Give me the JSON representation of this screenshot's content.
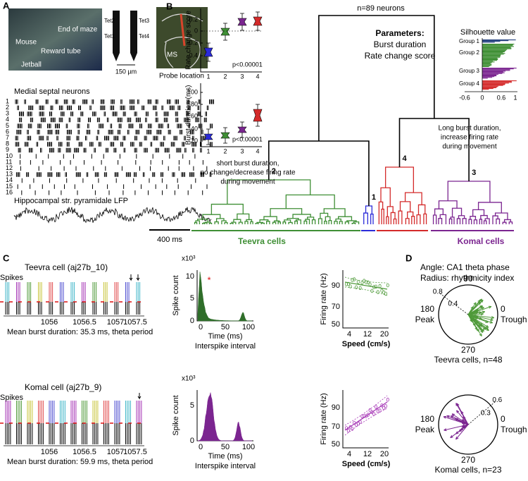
{
  "panel_a": {
    "letter": "A",
    "photo_labels": [
      "Mouse",
      "End of maze",
      "Reward tube",
      "Jetball"
    ],
    "tetrodes": [
      "Tet2",
      "Tet1",
      "Tet3",
      "Tet4"
    ],
    "scale": "150 µm",
    "region": "MS",
    "probe_caption": "Probe location",
    "raster_title": "Medial septal neurons",
    "neuron_ids": [
      "1",
      "2",
      "3",
      "4",
      "5",
      "6",
      "7",
      "8",
      "9",
      "10",
      "11",
      "12",
      "13",
      "14",
      "15",
      "16"
    ],
    "lfp_title": "Hippocampal str. pyramidale LFP",
    "time_scale": "400 ms"
  },
  "panel_b": {
    "letter": "B",
    "rate_plot": {
      "ylabel": "Rate change score",
      "yticks": [
        "0.2",
        "0",
        "-0.2",
        "-0.4"
      ],
      "xticks": [
        "1",
        "2",
        "3",
        "4"
      ],
      "p": "p<0.00001"
    },
    "burst_plot": {
      "ylabel": "Burst duration (ms)",
      "yticks": [
        "100",
        "80",
        "60",
        "40",
        "20"
      ],
      "xticks": [
        "1",
        "2",
        "3",
        "4"
      ],
      "p": "p<0.00001"
    },
    "n": "n=89 neurons",
    "params_title": "Parameters:",
    "params": [
      "Burst duration",
      "Rate change score"
    ],
    "silhouette": {
      "title": "Silhouette value",
      "groups": [
        "Group 1",
        "Group 2",
        "Group 3",
        "Group 4"
      ],
      "xticks": [
        "-0.6",
        "0",
        "0.6",
        "1"
      ]
    },
    "long_note": [
      "Long burst duration,",
      "increase firing rate",
      "during movement"
    ],
    "short_note": [
      "short burst duration,",
      "no change/decrease firing rate",
      "during movement"
    ],
    "cluster_ids": [
      "2",
      "1",
      "4",
      "3"
    ],
    "teevra": "Teevra cells",
    "komal": "Komal cells"
  },
  "panel_c": {
    "letter": "C",
    "cells": [
      {
        "title": "Teevra cell (aj27b_10)",
        "spikes_label": "Spikes",
        "xticks": [
          "1056",
          "1056.5",
          "1057",
          "1057.5"
        ],
        "caption": "Mean burst duration: 35.3 ms, theta period",
        "hist": {
          "multiplier": "x10³",
          "ylabel": "Spike count",
          "yticks": [
            "10",
            "5",
            "0"
          ],
          "xticks": [
            "0",
            "50",
            "100"
          ],
          "xlabel": "Time (ms)",
          "xlabel2": "Interspike interval"
        },
        "rate": {
          "ylabel": "Firing rate (Hz)",
          "yticks": [
            "90",
            "70",
            "50"
          ],
          "xticks": [
            "4",
            "12",
            "20"
          ],
          "xlabel": "Speed (cm/s)"
        }
      },
      {
        "title": "Komal cell (aj27b_9)",
        "spikes_label": "Spikes",
        "xticks": [
          "1056",
          "1056.5",
          "1057",
          "1057.5"
        ],
        "caption": "Mean burst duration: 59.9 ms, theta period",
        "hist": {
          "multiplier": "x10³",
          "ylabel": "Spike count",
          "yticks": [
            "5",
            "0"
          ],
          "xticks": [
            "0",
            "50",
            "100"
          ],
          "xlabel": "Time (ms)",
          "xlabel2": "Interspike interval"
        },
        "rate": {
          "ylabel": "Firing rate (Hz)",
          "yticks": [
            "90",
            "70",
            "50"
          ],
          "xticks": [
            "4",
            "12",
            "20"
          ],
          "xlabel": "Speed (cm/s)"
        }
      }
    ]
  },
  "panel_d": {
    "letter": "D",
    "header": [
      "Angle: CA1 theta phase",
      "Radius: rhythmicity index"
    ],
    "plots": [
      {
        "top": "90",
        "rings": [
          "0.8",
          "0.4"
        ],
        "left": "180",
        "left2": "Peak",
        "right": "0",
        "right2": "Trough",
        "bottom": "270",
        "caption": "Teevra cells, n=48"
      },
      {
        "bottom": "270",
        "rings": [
          "0.6",
          "0.3"
        ],
        "left": "180",
        "left2": "Peak",
        "right": "0",
        "right2": "Trough",
        "caption": "Komal cells, n=23"
      }
    ]
  }
}
